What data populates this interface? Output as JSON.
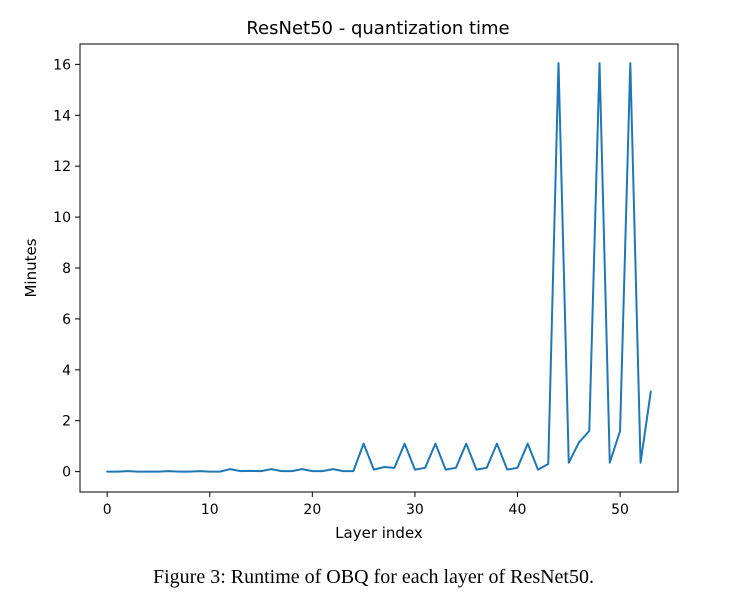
{
  "chart_data": {
    "type": "line",
    "title": "ResNet50 - quantization time",
    "xlabel": "Layer index",
    "ylabel": "Minutes",
    "xlim": [
      -2.65,
      55.65
    ],
    "ylim": [
      -0.8,
      16.8
    ],
    "x_ticks": [
      0,
      10,
      20,
      30,
      40,
      50
    ],
    "y_ticks": [
      0,
      2,
      4,
      6,
      8,
      10,
      12,
      14,
      16
    ],
    "grid": false,
    "legend": "none",
    "series": [
      {
        "color": "#1f77b4",
        "x": [
          0,
          1,
          2,
          3,
          4,
          5,
          6,
          7,
          8,
          9,
          10,
          11,
          12,
          13,
          14,
          15,
          16,
          17,
          18,
          19,
          20,
          21,
          22,
          23,
          24,
          25,
          26,
          27,
          28,
          29,
          30,
          31,
          32,
          33,
          34,
          35,
          36,
          37,
          38,
          39,
          40,
          41,
          42,
          43,
          44,
          45,
          46,
          47,
          48,
          49,
          50,
          51,
          52,
          53
        ],
        "y": [
          0.0,
          0.0,
          0.02,
          0.0,
          0.0,
          0.0,
          0.02,
          0.0,
          0.0,
          0.02,
          0.0,
          0.0,
          0.1,
          0.02,
          0.03,
          0.02,
          0.1,
          0.02,
          0.02,
          0.1,
          0.02,
          0.02,
          0.1,
          0.02,
          0.02,
          1.1,
          0.08,
          0.18,
          0.15,
          1.1,
          0.08,
          0.15,
          1.1,
          0.08,
          0.15,
          1.1,
          0.08,
          0.15,
          1.1,
          0.08,
          0.15,
          1.1,
          0.08,
          0.3,
          16.05,
          0.35,
          1.15,
          1.6,
          16.05,
          0.35,
          1.6,
          16.05,
          0.35,
          3.15
        ]
      }
    ]
  },
  "caption": "Figure 3: Runtime of OBQ for each layer of ResNet50."
}
